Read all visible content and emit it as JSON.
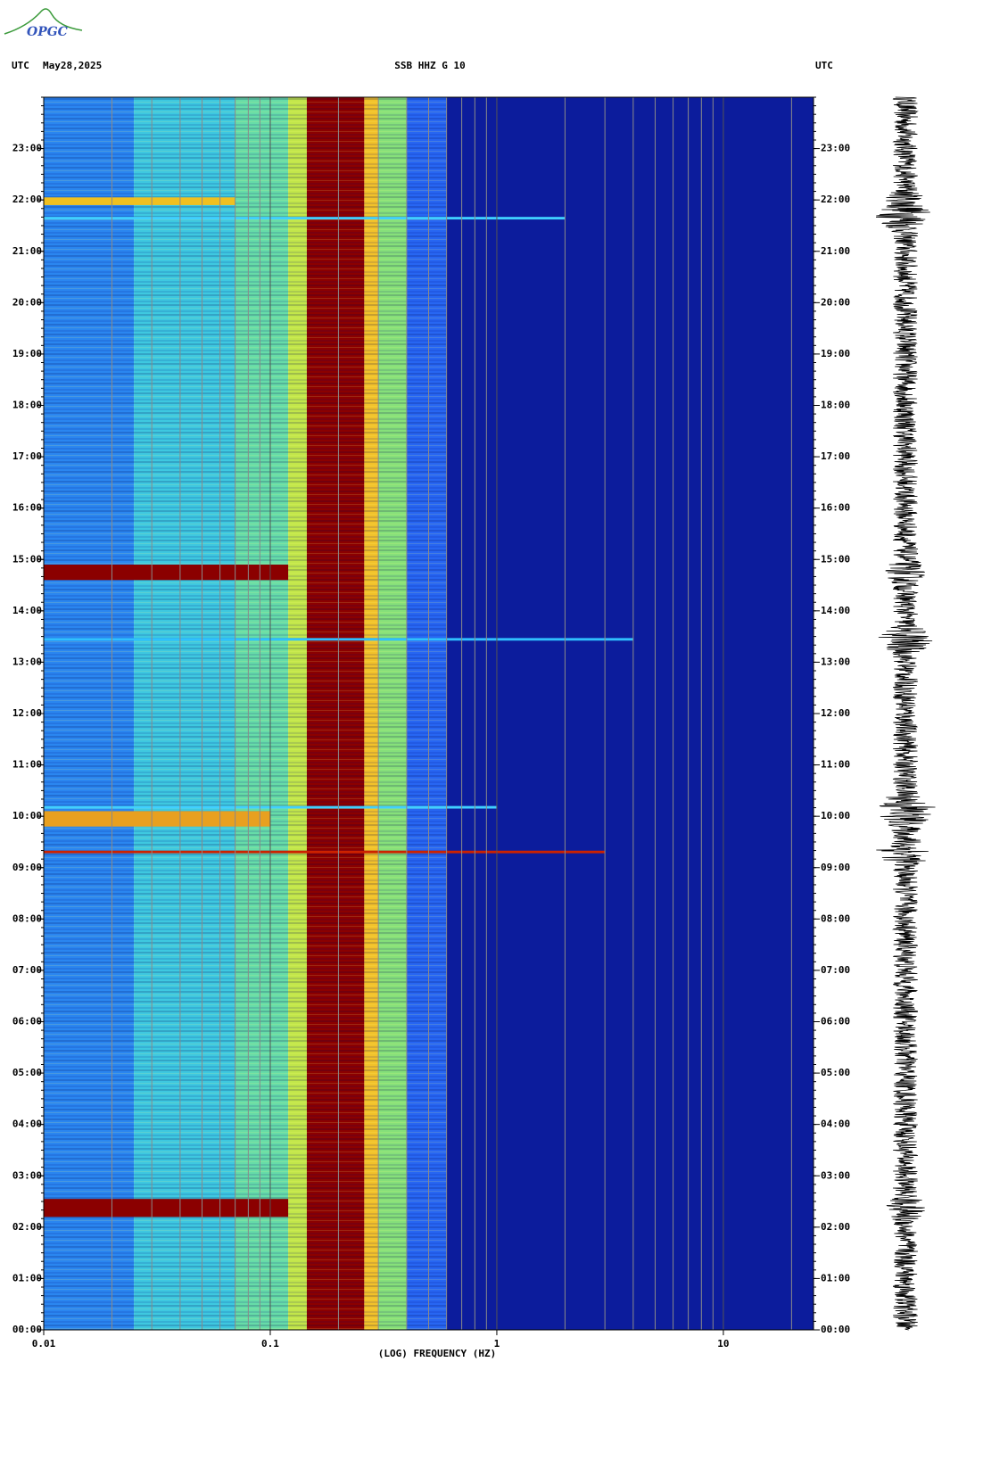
{
  "logo": "OPGC",
  "chart_data": {
    "type": "spectrogram",
    "title": "SSB HHZ G 10",
    "left_label": "UTC",
    "date": "May28,2025",
    "right_label": "UTC",
    "xlabel": "(LOG) FREQUENCY (HZ)",
    "xscale": "log",
    "xlim": [
      0.01,
      25
    ],
    "xticks": [
      0.01,
      0.1,
      1,
      10
    ],
    "minor_xticks": [
      0.02,
      0.03,
      0.04,
      0.05,
      0.06,
      0.07,
      0.08,
      0.09,
      0.2,
      0.3,
      0.4,
      0.5,
      0.6,
      0.7,
      0.8,
      0.9,
      2,
      3,
      4,
      5,
      6,
      7,
      8,
      9,
      20
    ],
    "ylim": [
      0,
      24
    ],
    "yticks": [
      {
        "value": 0,
        "label": "00:00"
      },
      {
        "value": 1,
        "label": "01:00"
      },
      {
        "value": 2,
        "label": "02:00"
      },
      {
        "value": 3,
        "label": "03:00"
      },
      {
        "value": 4,
        "label": "04:00"
      },
      {
        "value": 5,
        "label": "05:00"
      },
      {
        "value": 6,
        "label": "06:00"
      },
      {
        "value": 7,
        "label": "07:00"
      },
      {
        "value": 8,
        "label": "08:00"
      },
      {
        "value": 9,
        "label": "09:00"
      },
      {
        "value": 10,
        "label": "10:00"
      },
      {
        "value": 11,
        "label": "11:00"
      },
      {
        "value": 12,
        "label": "12:00"
      },
      {
        "value": 13,
        "label": "13:00"
      },
      {
        "value": 14,
        "label": "14:00"
      },
      {
        "value": 15,
        "label": "15:00"
      },
      {
        "value": 16,
        "label": "16:00"
      },
      {
        "value": 17,
        "label": "17:00"
      },
      {
        "value": 18,
        "label": "18:00"
      },
      {
        "value": 19,
        "label": "19:00"
      },
      {
        "value": 20,
        "label": "20:00"
      },
      {
        "value": 21,
        "label": "21:00"
      },
      {
        "value": 22,
        "label": "22:00"
      },
      {
        "value": 23,
        "label": "23:00"
      }
    ],
    "grid": true,
    "bands": [
      {
        "f": [
          0.01,
          0.025
        ],
        "color": "#2a86f0"
      },
      {
        "f": [
          0.025,
          0.07
        ],
        "color": "#3ec8e0"
      },
      {
        "f": [
          0.07,
          0.12
        ],
        "color": "#66dca8"
      },
      {
        "f": [
          0.12,
          0.145
        ],
        "color": "#c2e64a"
      },
      {
        "f": [
          0.145,
          0.26
        ],
        "color": "#8b0000"
      },
      {
        "f": [
          0.26,
          0.3
        ],
        "color": "#f2c22a"
      },
      {
        "f": [
          0.3,
          0.4
        ],
        "color": "#86e07a"
      },
      {
        "f": [
          0.4,
          0.6
        ],
        "color": "#2766f2"
      },
      {
        "f": [
          0.6,
          25
        ],
        "color": "#0c1c9c"
      }
    ],
    "events": [
      {
        "t": [
          2.2,
          2.55
        ],
        "fmax": 0.12,
        "color": "#8b0000"
      },
      {
        "t": [
          14.6,
          14.9
        ],
        "fmax": 0.12,
        "color": "#8b0000"
      },
      {
        "t": [
          9.8,
          10.1
        ],
        "fmax": 0.1,
        "color": "#e8a020"
      },
      {
        "t": [
          21.9,
          22.05
        ],
        "fmax": 0.07,
        "color": "#f0c020"
      },
      {
        "t": [
          9.28,
          9.33
        ],
        "fmax": 3,
        "color": "#cc2200"
      },
      {
        "t": [
          13.42,
          13.47
        ],
        "fmax": 4,
        "color": "#30c0ff"
      },
      {
        "t": [
          21.62,
          21.67
        ],
        "fmax": 2,
        "color": "#40d0ff"
      },
      {
        "t": [
          10.15,
          10.2
        ],
        "fmax": 1,
        "color": "#40d0ff"
      }
    ]
  }
}
